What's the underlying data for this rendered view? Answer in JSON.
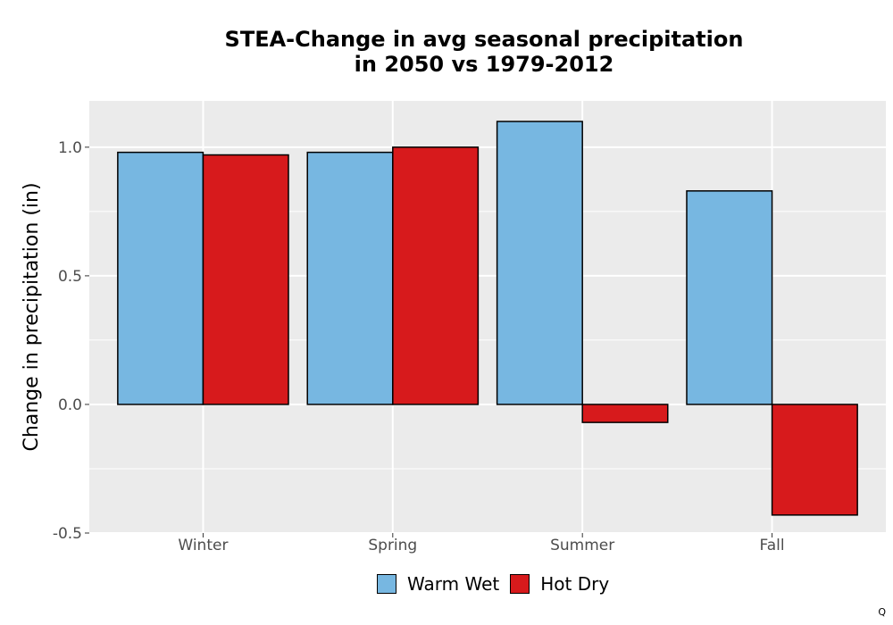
{
  "title_line1": "STEA-Change in avg seasonal precipitation",
  "title_line2": "in 2050 vs 1979-2012",
  "corner_mark": "Q",
  "colors": {
    "panel": "#ebebeb",
    "grid": "#ffffff",
    "warm_wet": "#77b7e1",
    "hot_dry": "#d71a1c"
  },
  "chart_data": {
    "type": "bar",
    "title": "STEA-Change in avg seasonal precipitation in 2050 vs 1979-2012",
    "xlabel": "",
    "ylabel": "Change in precipitation (in)",
    "categories": [
      "Winter",
      "Spring",
      "Summer",
      "Fall"
    ],
    "series": [
      {
        "name": "Warm Wet",
        "color": "#77b7e1",
        "values": [
          0.98,
          0.98,
          1.1,
          0.83
        ]
      },
      {
        "name": "Hot Dry",
        "color": "#d71a1c",
        "values": [
          0.97,
          1.0,
          -0.07,
          -0.43
        ]
      }
    ],
    "ylim": [
      -0.5,
      1.18
    ],
    "yticks": [
      -0.5,
      0.0,
      0.5,
      1.0
    ],
    "ytick_labels": [
      "-0.5",
      "0.0",
      "0.5",
      "1.0"
    ],
    "grid": true,
    "legend_position": "bottom"
  }
}
